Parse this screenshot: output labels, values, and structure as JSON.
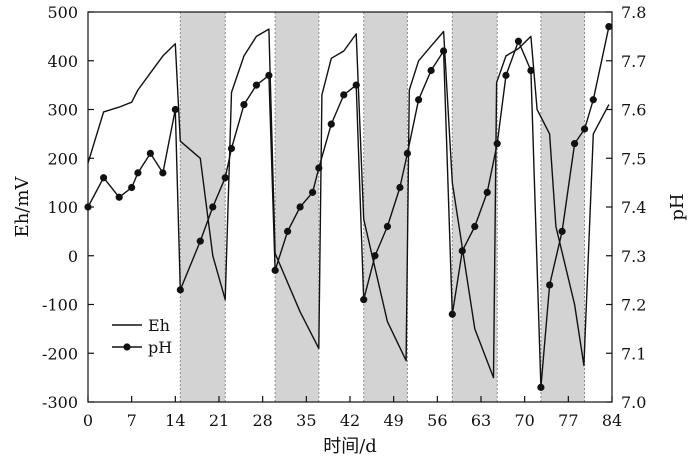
{
  "chart_data": {
    "type": "line",
    "xlabel": "时间/d",
    "ylabel_left": "Eh/mV",
    "ylabel_right": "pH",
    "xlim": [
      0,
      84
    ],
    "ylim_left": [
      -300,
      500
    ],
    "ylim_right": [
      7.0,
      7.8
    ],
    "xticks": [
      "0",
      "7",
      "14",
      "21",
      "28",
      "35",
      "42",
      "49",
      "56",
      "63",
      "70",
      "77",
      "84"
    ],
    "yticks_left": [
      "-300",
      "-200",
      "-100",
      "0",
      "100",
      "200",
      "300",
      "400",
      "500"
    ],
    "yticks_right": [
      "7.0",
      "7.1",
      "7.2",
      "7.3",
      "7.4",
      "7.5",
      "7.6",
      "7.7",
      "7.8"
    ],
    "shaded_intervals": [
      [
        14.8,
        22
      ],
      [
        30,
        37
      ],
      [
        44.2,
        51.2
      ],
      [
        58.4,
        65.6
      ],
      [
        72.6,
        79.6
      ]
    ],
    "legend_position": "lower-left",
    "series": [
      {
        "name": "Eh",
        "axis": "left",
        "marker": "none",
        "color": "#111111",
        "x": [
          0,
          2.5,
          5,
          7,
          8,
          10,
          12,
          14,
          14.8,
          18,
          20,
          22,
          23,
          25,
          27,
          29,
          30,
          34,
          37,
          37.5,
          39,
          41,
          43,
          44.2,
          48,
          51,
          51.5,
          53,
          55,
          57,
          58.4,
          62,
          65,
          65.5,
          67,
          69,
          71,
          72,
          74,
          75,
          78,
          79.5,
          81,
          83.5
        ],
        "y": [
          190,
          295,
          305,
          315,
          340,
          375,
          410,
          435,
          235,
          200,
          0,
          -90,
          335,
          410,
          450,
          465,
          5,
          -115,
          -190,
          330,
          405,
          420,
          455,
          75,
          -135,
          -215,
          340,
          400,
          430,
          460,
          150,
          -150,
          -250,
          355,
          410,
          425,
          450,
          300,
          250,
          60,
          -100,
          -225,
          250,
          310
        ]
      },
      {
        "name": "pH",
        "axis": "right",
        "marker": "circle",
        "color": "#111111",
        "x": [
          0,
          2.5,
          5,
          7,
          8,
          10,
          12,
          14,
          14.8,
          18,
          20,
          22,
          23,
          25,
          27,
          29,
          30,
          32,
          34,
          36,
          37,
          39,
          41,
          43,
          44.2,
          46,
          48,
          50,
          51.2,
          53,
          55,
          57,
          58.4,
          60,
          62,
          64,
          65.6,
          67,
          69,
          71,
          72.6,
          74,
          76,
          78,
          79.6,
          81,
          83.5
        ],
        "y": [
          7.4,
          7.46,
          7.42,
          7.44,
          7.47,
          7.51,
          7.47,
          7.6,
          7.23,
          7.33,
          7.4,
          7.46,
          7.52,
          7.61,
          7.65,
          7.67,
          7.27,
          7.35,
          7.4,
          7.43,
          7.48,
          7.57,
          7.63,
          7.65,
          7.21,
          7.3,
          7.36,
          7.44,
          7.51,
          7.62,
          7.68,
          7.72,
          7.18,
          7.31,
          7.36,
          7.43,
          7.53,
          7.67,
          7.74,
          7.68,
          7.03,
          7.24,
          7.35,
          7.53,
          7.56,
          7.62,
          7.77
        ]
      }
    ]
  }
}
